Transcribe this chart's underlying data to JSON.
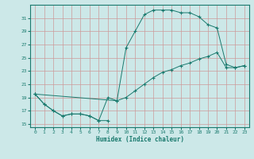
{
  "xlabel": "Humidex (Indice chaleur)",
  "bg_color": "#cce8e8",
  "grid_color": "#aaaaaa",
  "line_color": "#1a7a6e",
  "ylim": [
    14.5,
    33
  ],
  "xlim": [
    -0.5,
    23.5
  ],
  "yticks": [
    15,
    17,
    19,
    21,
    23,
    25,
    27,
    29,
    31
  ],
  "xticks": [
    0,
    1,
    2,
    3,
    4,
    5,
    6,
    7,
    8,
    9,
    10,
    11,
    12,
    13,
    14,
    15,
    16,
    17,
    18,
    19,
    20,
    21,
    22,
    23
  ],
  "line1_x": [
    0,
    1,
    2,
    3,
    4,
    5,
    6,
    7,
    8
  ],
  "line1_y": [
    19.5,
    18.0,
    17.0,
    16.2,
    16.5,
    16.5,
    16.2,
    15.5,
    15.5
  ],
  "line2_x": [
    0,
    1,
    2,
    3,
    4,
    5,
    6,
    7,
    8,
    9,
    10,
    11,
    12,
    13,
    14,
    15,
    16,
    17,
    18,
    19,
    20,
    21,
    22,
    23
  ],
  "line2_y": [
    19.5,
    18.0,
    17.0,
    16.2,
    16.5,
    16.5,
    16.2,
    15.5,
    19.0,
    18.5,
    26.5,
    29.0,
    31.5,
    32.2,
    32.2,
    32.2,
    31.8,
    31.8,
    31.2,
    30.0,
    29.5,
    24.0,
    23.5,
    23.8
  ],
  "line3_x": [
    0,
    9,
    10,
    11,
    12,
    13,
    14,
    15,
    16,
    17,
    18,
    19,
    20,
    21,
    22,
    23
  ],
  "line3_y": [
    19.5,
    18.5,
    19.0,
    20.0,
    21.0,
    22.0,
    22.8,
    23.2,
    23.8,
    24.2,
    24.8,
    25.2,
    25.8,
    23.5,
    23.5,
    23.8
  ]
}
